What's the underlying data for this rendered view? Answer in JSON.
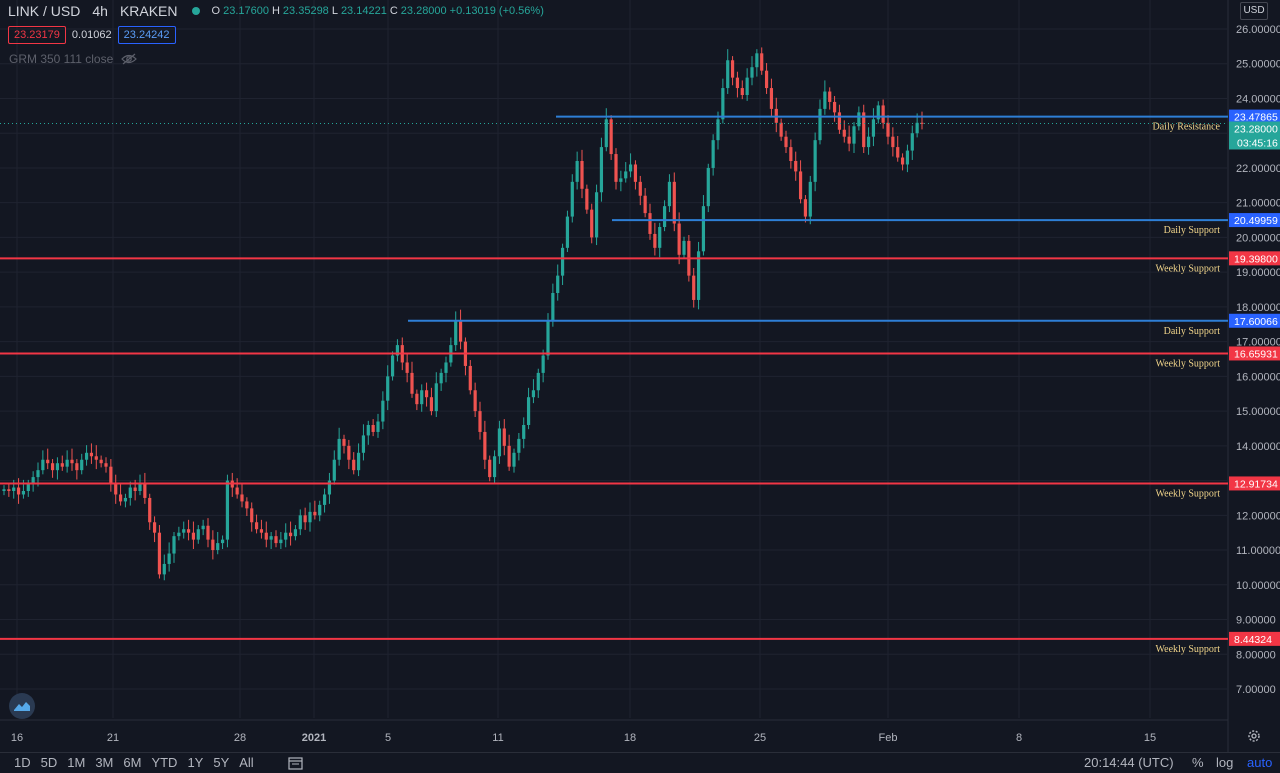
{
  "header": {
    "symbol": "LINK / USD",
    "interval": "4h",
    "exchange": "KRAKEN",
    "ohlc": {
      "o_label": "O",
      "o": "23.17600",
      "h_label": "H",
      "h": "23.35298",
      "l_label": "L",
      "l": "23.14221",
      "c_label": "C",
      "c": "23.28000",
      "change": "+0.13019 (+0.56%)"
    },
    "bid": "23.23179",
    "spread": "0.01062",
    "ask": "23.24242",
    "indicator": "GRM 350 111 close"
  },
  "currency_button": "USD",
  "colors": {
    "background": "#131722",
    "up": "#26a69a",
    "down": "#ef5350",
    "weekly_line": "#f23645",
    "daily_line": "#2e7fd6",
    "annotation_text": "#f0d48a"
  },
  "chart_data": {
    "type": "candlestick",
    "ylim": [
      6.3,
      26.5
    ],
    "y_ticks": [
      "26.00000",
      "25.00000",
      "24.00000",
      "23.00000",
      "22.00000",
      "21.00000",
      "20.00000",
      "19.00000",
      "18.00000",
      "17.00000",
      "16.00000",
      "15.00000",
      "14.00000",
      "13.00000",
      "12.00000",
      "11.00000",
      "10.00000",
      "9.00000",
      "8.00000",
      "7.00000"
    ],
    "x_ticks": [
      "16",
      "21",
      "28",
      "2021",
      "5",
      "11",
      "18",
      "25",
      "Feb",
      "8",
      "15"
    ],
    "last_price": "23.28000",
    "countdown": "03:45:16",
    "levels": [
      {
        "label": "Daily Resistance",
        "value": 23.47865,
        "tag": "23.47865",
        "kind": "daily"
      },
      {
        "label": "Daily Support",
        "value": 20.49959,
        "tag": "20.49959",
        "kind": "daily"
      },
      {
        "label": "Weekly Support",
        "value": 19.398,
        "tag": "19.39800",
        "kind": "weekly"
      },
      {
        "label": "Daily Support",
        "value": 17.60066,
        "tag": "17.60066",
        "kind": "daily"
      },
      {
        "label": "Weekly Support",
        "value": 16.65931,
        "tag": "16.65931",
        "kind": "weekly"
      },
      {
        "label": "Weekly Support",
        "value": 12.91734,
        "tag": "12.91734",
        "kind": "weekly"
      },
      {
        "label": "Weekly Support",
        "value": 8.44324,
        "tag": "8.44324",
        "kind": "weekly"
      }
    ],
    "x_period_start": "Dec 15 2020",
    "candle_interval_hours": 4,
    "candles_close": [
      12.75,
      12.7,
      12.8,
      12.6,
      12.7,
      12.9,
      13.1,
      13.3,
      13.6,
      13.5,
      13.3,
      13.5,
      13.4,
      13.6,
      13.5,
      13.3,
      13.6,
      13.8,
      13.7,
      13.6,
      13.5,
      13.4,
      12.9,
      12.6,
      12.4,
      12.5,
      12.8,
      12.7,
      12.9,
      12.5,
      11.8,
      11.5,
      10.3,
      10.6,
      10.9,
      11.4,
      11.5,
      11.6,
      11.5,
      11.3,
      11.6,
      11.7,
      11.3,
      11.0,
      11.2,
      11.3,
      13.0,
      12.8,
      12.6,
      12.4,
      12.2,
      11.8,
      11.6,
      11.5,
      11.3,
      11.4,
      11.2,
      11.3,
      11.5,
      11.4,
      11.6,
      12.0,
      11.8,
      12.1,
      12.0,
      12.3,
      12.6,
      13.0,
      13.6,
      14.2,
      14.0,
      13.6,
      13.3,
      13.8,
      14.3,
      14.6,
      14.4,
      14.7,
      15.3,
      16.0,
      16.6,
      16.9,
      16.4,
      16.1,
      15.5,
      15.2,
      15.6,
      15.4,
      15.0,
      15.8,
      16.1,
      16.4,
      16.9,
      17.6,
      17.0,
      16.3,
      15.6,
      15.0,
      14.4,
      13.6,
      13.1,
      13.7,
      14.5,
      14.0,
      13.4,
      13.8,
      14.2,
      14.6,
      15.4,
      15.6,
      16.1,
      16.6,
      17.6,
      18.4,
      18.9,
      19.7,
      20.6,
      21.6,
      22.2,
      21.4,
      20.8,
      20.0,
      21.3,
      22.6,
      23.4,
      22.4,
      21.6,
      21.7,
      21.9,
      22.1,
      21.6,
      21.2,
      20.7,
      20.1,
      19.7,
      20.3,
      20.9,
      21.6,
      20.4,
      19.5,
      19.9,
      18.9,
      18.2,
      19.6,
      20.9,
      22.0,
      22.8,
      23.4,
      24.3,
      25.1,
      24.6,
      24.3,
      24.1,
      24.6,
      24.9,
      25.3,
      24.8,
      24.3,
      23.7,
      23.3,
      22.9,
      22.6,
      22.2,
      21.9,
      21.1,
      20.6,
      21.6,
      22.8,
      23.7,
      24.2,
      23.9,
      23.6,
      23.1,
      22.9,
      22.7,
      23.2,
      23.6,
      22.6,
      22.9,
      23.4,
      23.8,
      23.3,
      22.9,
      22.6,
      22.3,
      22.1,
      22.5,
      23.0,
      23.3,
      23.28
    ]
  },
  "bottom_bar": {
    "ranges": [
      "1D",
      "5D",
      "1M",
      "3M",
      "6M",
      "YTD",
      "1Y",
      "5Y",
      "All"
    ],
    "clock": "20:14:44 (UTC)",
    "percent": "%",
    "log": "log",
    "auto": "auto"
  }
}
